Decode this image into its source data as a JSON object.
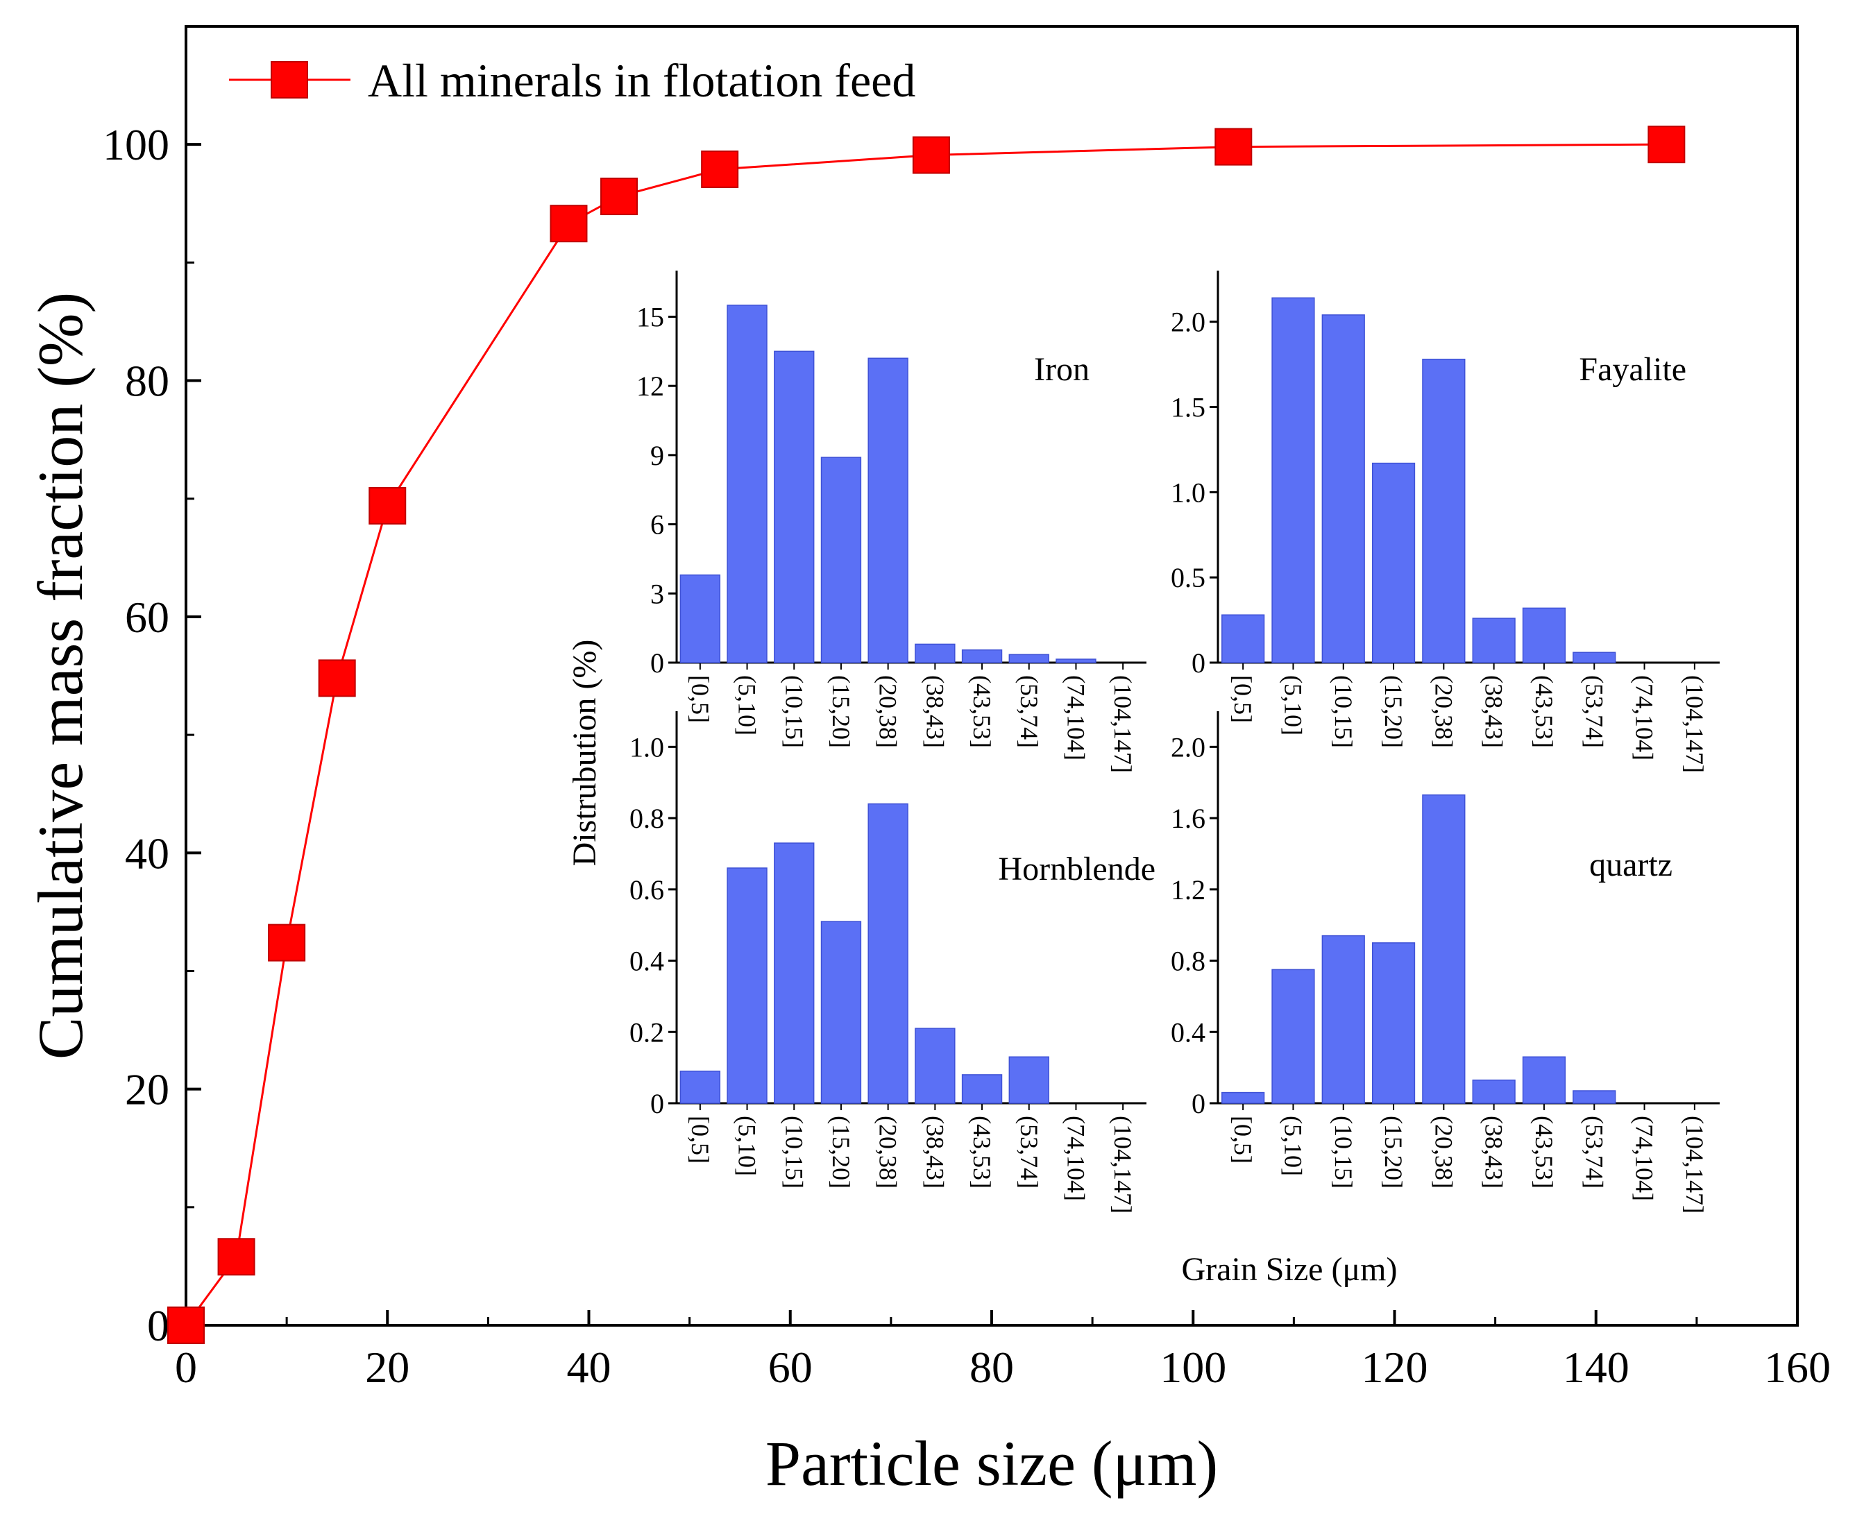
{
  "chart_data": [
    {
      "type": "line",
      "name": "main",
      "xlabel": "Particle size (μm)",
      "ylabel": "Cumulative mass fraction (%)",
      "xlim": [
        0,
        160
      ],
      "ylim": [
        0,
        110
      ],
      "xticks": [
        0,
        20,
        40,
        60,
        80,
        100,
        120,
        140,
        160
      ],
      "yticks": [
        0,
        20,
        40,
        60,
        80,
        100
      ],
      "legend_position": "top-left",
      "series": [
        {
          "name": "All minerals in flotation feed",
          "color": "#ff0000",
          "marker": "square",
          "x": [
            0,
            5,
            10,
            15,
            20,
            38,
            43,
            53,
            74,
            104,
            147
          ],
          "y": [
            0,
            5.8,
            32.4,
            54.8,
            69.4,
            93.3,
            95.6,
            97.9,
            99.1,
            99.8,
            100
          ]
        }
      ]
    },
    {
      "type": "bar",
      "name": "Iron",
      "title": "Iron",
      "color": "#5b70f5",
      "categories": [
        "[0,5]",
        "(5,10]",
        "(10,15]",
        "(15,20]",
        "(20,38]",
        "(38,43]",
        "(43,53]",
        "(53,74]",
        "(74,104]",
        "(104,147]"
      ],
      "values": [
        3.8,
        15.5,
        13.5,
        8.9,
        13.2,
        0.8,
        0.55,
        0.35,
        0.15,
        0
      ],
      "ylim": [
        0,
        17
      ],
      "yticks": [
        0,
        3,
        6,
        9,
        12,
        15
      ],
      "ytick_labels": [
        "0",
        "3",
        "6",
        "9",
        "12",
        "15"
      ]
    },
    {
      "type": "bar",
      "name": "Fayalite",
      "title": "Fayalite",
      "color": "#5b70f5",
      "categories": [
        "[0,5]",
        "(5,10]",
        "(10,15]",
        "(15,20]",
        "(20,38]",
        "(38,43]",
        "(43,53]",
        "(53,74]",
        "(74,104]",
        "(104,147]"
      ],
      "values": [
        0.28,
        2.14,
        2.04,
        1.17,
        1.78,
        0.26,
        0.32,
        0.06,
        0,
        0
      ],
      "ylim": [
        0,
        2.3
      ],
      "yticks": [
        0,
        0.5,
        1.0,
        1.5,
        2.0
      ],
      "ytick_labels": [
        "0",
        "0.5",
        "1.0",
        "1.5",
        "2.0"
      ]
    },
    {
      "type": "bar",
      "name": "Hornblende",
      "title": "Hornblende",
      "color": "#5b70f5",
      "categories": [
        "[0,5]",
        "(5,10]",
        "(10,15]",
        "(15,20]",
        "(20,38]",
        "(38,43]",
        "(43,53]",
        "(53,74]",
        "(74,104]",
        "(104,147]"
      ],
      "values": [
        0.09,
        0.66,
        0.73,
        0.51,
        0.84,
        0.21,
        0.08,
        0.13,
        0,
        0
      ],
      "ylim": [
        0,
        1.1
      ],
      "yticks": [
        0,
        0.2,
        0.4,
        0.6,
        0.8,
        1.0
      ],
      "ytick_labels": [
        "0",
        "0.2",
        "0.4",
        "0.6",
        "0.8",
        "1.0"
      ]
    },
    {
      "type": "bar",
      "name": "quartz",
      "title": "quartz",
      "color": "#5b70f5",
      "categories": [
        "[0,5]",
        "(5,10]",
        "(10,15]",
        "(15,20]",
        "(20,38]",
        "(38,43]",
        "(43,53]",
        "(53,74]",
        "(74,104]",
        "(104,147]"
      ],
      "values": [
        0.06,
        0.75,
        0.94,
        0.9,
        1.73,
        0.13,
        0.26,
        0.07,
        0,
        0
      ],
      "ylim": [
        0,
        2.2
      ],
      "yticks": [
        0,
        0.4,
        0.8,
        1.2,
        1.6,
        2.0
      ],
      "ytick_labels": [
        "0",
        "0.4",
        "0.8",
        "1.2",
        "1.6",
        "2.0"
      ]
    }
  ],
  "inset_labels": {
    "ylabel": "Distrubution (%)",
    "xlabel": "Grain Size (μm)"
  }
}
